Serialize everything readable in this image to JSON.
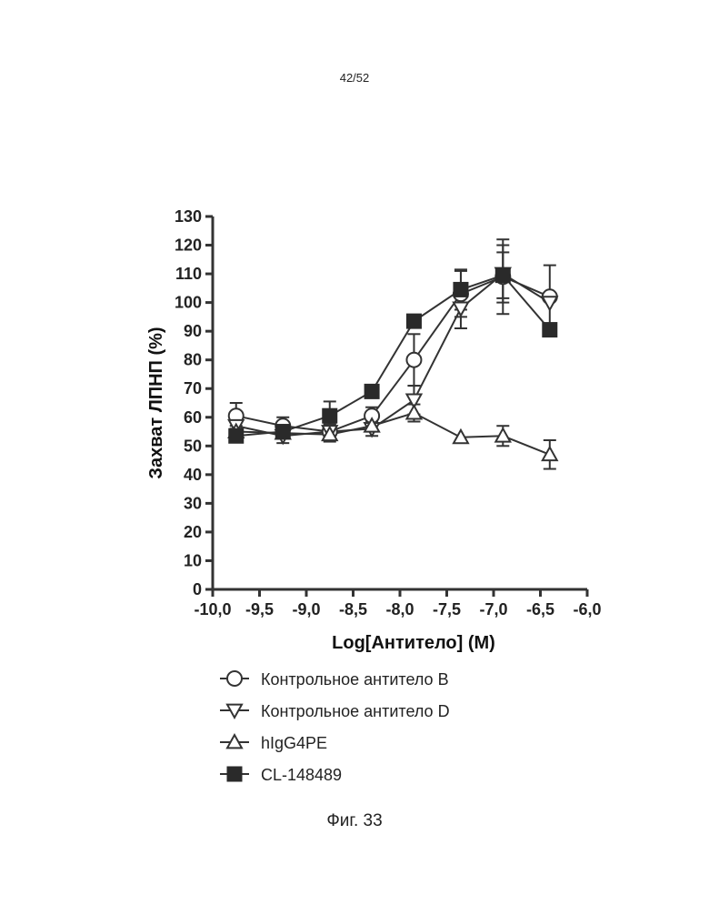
{
  "page_number": "42/52",
  "caption": "Фиг. 33",
  "chart_data": {
    "type": "line",
    "xlabel": "Log[Антитело] (M)",
    "ylabel": "Захват ЛПНП (%)",
    "xlim": [
      -10.0,
      -6.0
    ],
    "ylim": [
      0,
      130
    ],
    "xticks": [
      -10.0,
      -9.5,
      -9.0,
      -8.5,
      -8.0,
      -7.5,
      -7.0,
      -6.5,
      -6.0
    ],
    "xtick_labels": [
      "-10,0",
      "-9,5",
      "-9,0",
      "-8,5",
      "-8,0",
      "-7,5",
      "-7,0",
      "-6,5",
      "-6,0"
    ],
    "yticks": [
      0,
      10,
      20,
      30,
      40,
      50,
      60,
      70,
      80,
      90,
      100,
      110,
      120,
      130
    ],
    "ytick_labels": [
      "0",
      "10",
      "20",
      "30",
      "40",
      "50",
      "60",
      "70",
      "80",
      "90",
      "100",
      "110",
      "120",
      "130"
    ],
    "grid": false,
    "legend_position": "bottom",
    "series": [
      {
        "name": "Контрольное антитело B",
        "marker": "circle-open",
        "x": [
          -9.75,
          -9.25,
          -8.75,
          -8.3,
          -7.85,
          -7.35,
          -6.9,
          -6.4
        ],
        "y": [
          60.5,
          57,
          55,
          60.5,
          80,
          103,
          109,
          102
        ],
        "err": [
          4.5,
          3,
          2.5,
          3,
          9,
          8,
          13,
          11
        ]
      },
      {
        "name": "Контрольное антитело D",
        "marker": "triangle-down-open",
        "x": [
          -9.75,
          -9.25,
          -8.75,
          -8.3,
          -7.85,
          -7.35,
          -6.9,
          -6.4
        ],
        "y": [
          57,
          53.5,
          55,
          56,
          66,
          98,
          110,
          100
        ],
        "err": [
          3,
          2.5,
          2.5,
          2.5,
          5,
          7,
          10,
          0
        ]
      },
      {
        "name": "hIgG4PE",
        "marker": "triangle-up-open",
        "x": [
          -9.75,
          -9.25,
          -8.75,
          -8.3,
          -7.85,
          -7.35,
          -6.9,
          -6.4
        ],
        "y": [
          55,
          54.5,
          54,
          57,
          61.5,
          53,
          53.5,
          47
        ],
        "err": [
          2,
          2,
          2.5,
          2,
          3,
          0,
          3.5,
          5
        ]
      },
      {
        "name": "CL-148489",
        "marker": "square-filled",
        "x": [
          -9.75,
          -9.25,
          -8.75,
          -8.3,
          -7.85,
          -7.35,
          -6.9,
          -6.4
        ],
        "y": [
          53.5,
          55,
          60.5,
          69,
          93.5,
          104.5,
          109.5,
          90.5
        ],
        "err": [
          2,
          2,
          5,
          0,
          0,
          7,
          8,
          0
        ]
      }
    ]
  }
}
